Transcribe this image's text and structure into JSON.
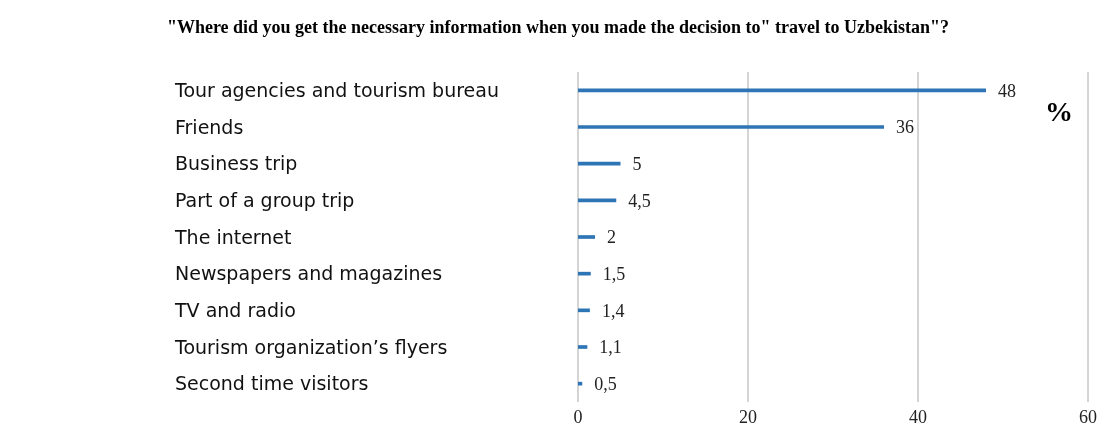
{
  "chart_data": {
    "type": "bar",
    "orientation": "horizontal",
    "title": "\"Where did you get the necessary information when you made the decision to\" travel to Uzbekistan\"?",
    "categories": [
      "Tour agencies and tourism bureau",
      "Friends",
      "Business trip",
      "Part of a group trip",
      "The internet",
      "Newspapers and magazines",
      "TV and radio",
      "Tourism organization’s flyers",
      "Second time visitors"
    ],
    "values": [
      48,
      36,
      5,
      4.5,
      2,
      1.5,
      1.4,
      1.1,
      0.5
    ],
    "value_labels": [
      "48",
      "36",
      "5",
      "4,5",
      "2",
      "1,5",
      "1,4",
      "1,1",
      "0,5"
    ],
    "color": "#2e75b6",
    "xlim": [
      0,
      60
    ],
    "xticks": [
      0,
      20,
      40,
      60
    ],
    "grid": "x",
    "annotations": [
      "%"
    ]
  }
}
